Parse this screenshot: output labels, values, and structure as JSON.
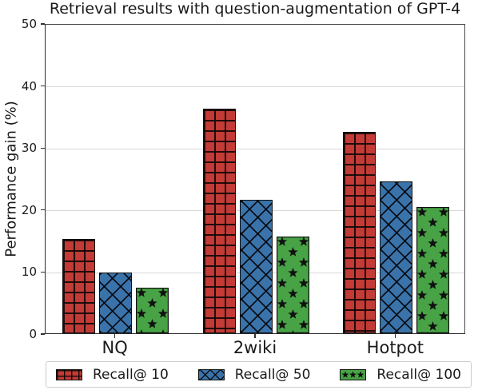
{
  "title": "Retrieval results with question-augmentation of GPT-4",
  "chart_data": {
    "type": "bar",
    "title": "Retrieval results with question-augmentation of GPT-4",
    "xlabel": "",
    "ylabel": "Performance gain (%)",
    "categories": [
      "NQ",
      "2wiki",
      "Hotpot"
    ],
    "series": [
      {
        "name": "Recall@ 10",
        "color": "#c23b36",
        "hatch": "plus",
        "values": [
          15.2,
          36.2,
          32.5
        ]
      },
      {
        "name": "Recall@ 50",
        "color": "#3a73a9",
        "hatch": "cross",
        "values": [
          9.8,
          21.5,
          24.5
        ]
      },
      {
        "name": "Recall@ 100",
        "color": "#47a345",
        "hatch": "star",
        "values": [
          7.4,
          15.6,
          20.3
        ]
      }
    ],
    "ylim": [
      0,
      50
    ],
    "yticks": [
      0,
      10,
      20,
      30,
      40,
      50
    ],
    "grid": true,
    "legend_position": "bottom",
    "hatch_color": "#111111",
    "grid_color": "#d9d9d9"
  }
}
